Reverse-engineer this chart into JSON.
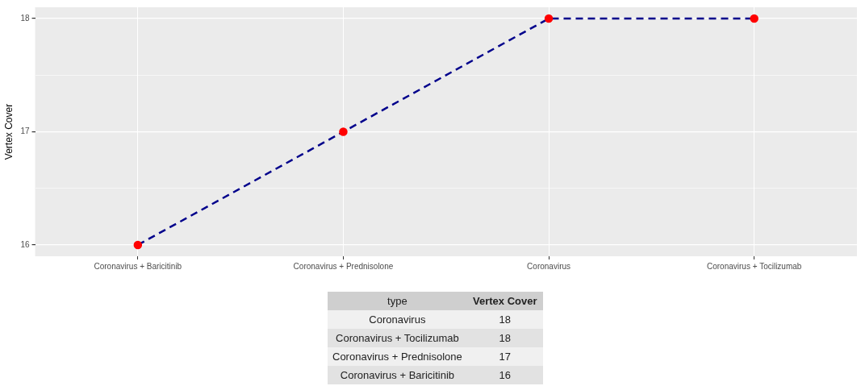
{
  "chart_data": [
    {
      "type": "line",
      "ylabel": "Vertex Cover",
      "categories": [
        "Coronavirus + Baricitinib",
        "Coronavirus + Prednisolone",
        "Coronavirus",
        "Coronavirus + Tocilizumab"
      ],
      "series": [
        {
          "color": "#00008b",
          "values": [
            16,
            17,
            18,
            18
          ]
        }
      ],
      "ylim": [
        15.9,
        18.1
      ],
      "yticks": [
        16,
        {
          "value": 16.5,
          "label": null
        },
        17,
        {
          "value": 17.5,
          "label": null
        },
        18
      ],
      "grid": true,
      "legend": false,
      "marker": "circle",
      "line_style": "dashed"
    },
    {
      "type": "other",
      "annotations": [
        "type",
        "Vertex Cover",
        "Coronavirus",
        "18",
        "Coronavirus + Tocilizumab",
        "18",
        "Coronavirus + Prednisolone",
        "17",
        "Coronavirus + Baricitinib",
        "16"
      ]
    }
  ]
}
